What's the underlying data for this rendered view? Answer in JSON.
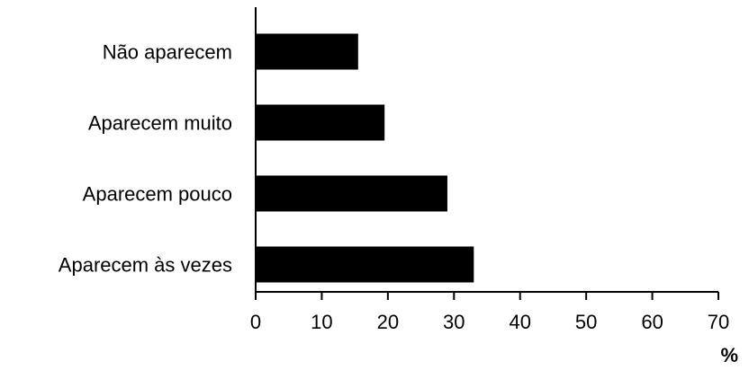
{
  "chart_data": {
    "type": "bar",
    "orientation": "horizontal",
    "categories": [
      "Não aparecem",
      "Aparecem muito",
      "Aparecem pouco",
      "Aparecem às vezes"
    ],
    "values": [
      15.5,
      19.5,
      29,
      33
    ],
    "xlim": [
      0,
      70
    ],
    "xticks": [
      "0",
      "10",
      "20",
      "30",
      "40",
      "50",
      "60",
      "70"
    ],
    "xunit": "%",
    "bar_color": "#000000",
    "grid": false
  }
}
